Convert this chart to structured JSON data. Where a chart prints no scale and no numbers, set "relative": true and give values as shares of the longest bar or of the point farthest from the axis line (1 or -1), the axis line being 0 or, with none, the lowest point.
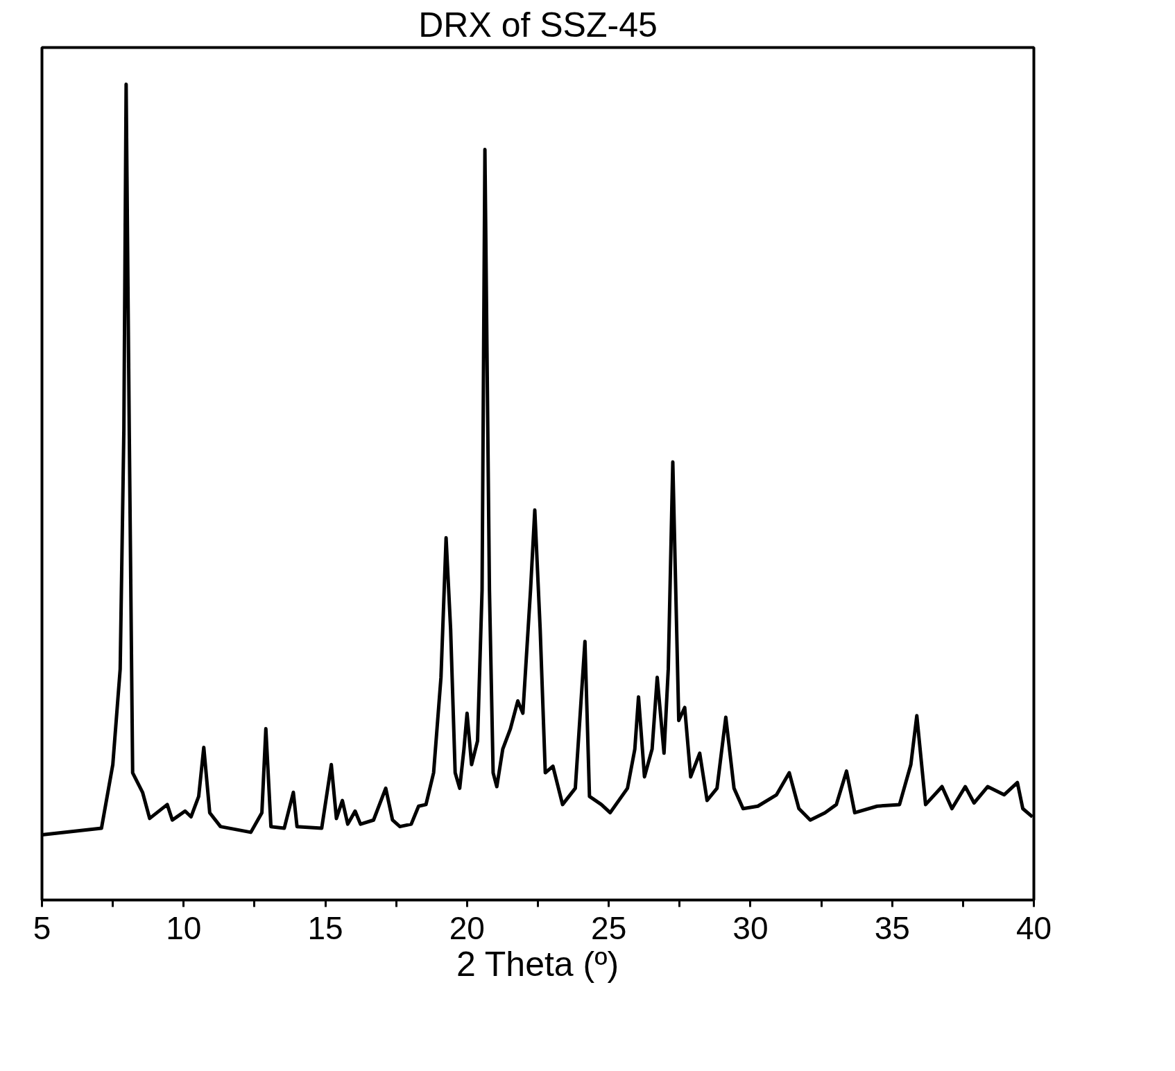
{
  "chart_data": {
    "type": "line",
    "title": "DRX of SSZ-45",
    "xlabel": "2 Theta (º)",
    "relative": true,
    "grid": false,
    "marker": "none",
    "line_style": "solid",
    "xlim": [
      5,
      40
    ],
    "xticks": [
      5,
      {
        "value": 7.5,
        "label": null
      },
      10,
      {
        "value": 12.5,
        "label": null
      },
      15,
      {
        "value": 17.5,
        "label": null
      },
      20,
      {
        "value": 22.5,
        "label": null
      },
      25,
      {
        "value": 27.5,
        "label": null
      },
      30,
      {
        "value": 32.5,
        "label": null
      },
      35,
      {
        "value": 37.5,
        "label": null
      },
      40
    ],
    "tick_labels": "x",
    "series": [
      {
        "color": "#000000",
        "x": [
          5.0,
          7.1,
          7.5,
          7.76,
          7.89,
          7.97,
          8.08,
          8.2,
          8.55,
          8.8,
          9.42,
          9.6,
          10.05,
          10.26,
          10.53,
          10.71,
          10.92,
          11.3,
          12.37,
          12.76,
          12.9,
          13.08,
          13.55,
          13.87,
          14.0,
          14.87,
          15.21,
          15.39,
          15.6,
          15.79,
          16.05,
          16.24,
          16.7,
          17.13,
          17.37,
          17.63,
          18.03,
          18.29,
          18.55,
          18.82,
          19.08,
          19.26,
          19.42,
          19.58,
          19.74,
          19.89,
          20.0,
          20.16,
          20.37,
          20.53,
          20.63,
          20.79,
          20.92,
          21.05,
          21.26,
          21.53,
          21.79,
          21.97,
          22.24,
          22.39,
          22.58,
          22.76,
          23.03,
          23.37,
          23.82,
          24.16,
          24.32,
          24.74,
          25.05,
          25.66,
          25.92,
          26.05,
          26.26,
          26.53,
          26.71,
          26.95,
          27.1,
          27.26,
          27.47,
          27.68,
          27.89,
          28.21,
          28.47,
          28.82,
          29.13,
          29.42,
          29.74,
          30.26,
          30.92,
          31.37,
          31.71,
          32.11,
          32.63,
          33.03,
          33.39,
          33.68,
          34.47,
          35.26,
          35.66,
          35.87,
          36.18,
          36.76,
          37.11,
          37.58,
          37.89,
          38.37,
          38.95,
          39.42,
          39.61,
          39.95
        ],
        "values": [
          0.08,
          0.088,
          0.166,
          0.283,
          0.576,
          1.0,
          0.576,
          0.156,
          0.132,
          0.1,
          0.117,
          0.098,
          0.109,
          0.102,
          0.127,
          0.187,
          0.107,
          0.09,
          0.083,
          0.107,
          0.21,
          0.09,
          0.088,
          0.132,
          0.09,
          0.088,
          0.166,
          0.1,
          0.122,
          0.093,
          0.109,
          0.093,
          0.098,
          0.137,
          0.098,
          0.09,
          0.093,
          0.115,
          0.117,
          0.156,
          0.273,
          0.444,
          0.332,
          0.156,
          0.137,
          0.185,
          0.229,
          0.166,
          0.195,
          0.38,
          0.92,
          0.38,
          0.156,
          0.139,
          0.185,
          0.21,
          0.244,
          0.229,
          0.38,
          0.478,
          0.332,
          0.156,
          0.164,
          0.117,
          0.137,
          0.317,
          0.127,
          0.117,
          0.107,
          0.137,
          0.185,
          0.249,
          0.151,
          0.185,
          0.273,
          0.18,
          0.283,
          0.537,
          0.22,
          0.236,
          0.151,
          0.18,
          0.122,
          0.137,
          0.224,
          0.137,
          0.112,
          0.115,
          0.129,
          0.156,
          0.112,
          0.098,
          0.107,
          0.117,
          0.158,
          0.107,
          0.115,
          0.117,
          0.166,
          0.226,
          0.117,
          0.139,
          0.112,
          0.139,
          0.119,
          0.139,
          0.129,
          0.144,
          0.112,
          0.102
        ]
      }
    ]
  }
}
